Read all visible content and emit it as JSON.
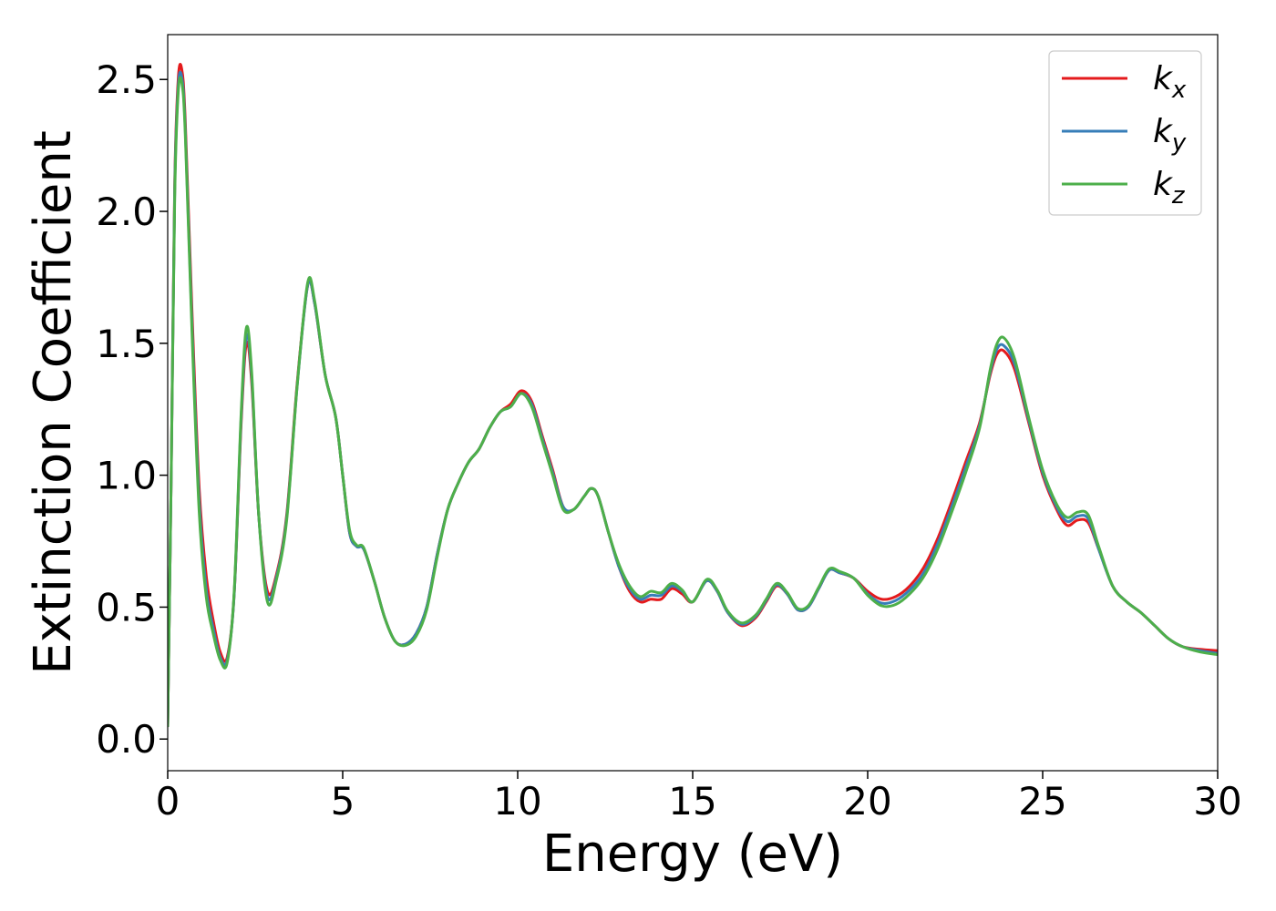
{
  "chart_data": {
    "type": "line",
    "title": "",
    "xlabel": "Energy (eV)",
    "ylabel": "Extinction Coefficient",
    "xlim": [
      0,
      30
    ],
    "ylim": [
      -0.12,
      2.67
    ],
    "xticks": [
      0,
      5,
      10,
      15,
      20,
      25,
      30
    ],
    "xtick_labels": [
      "0",
      "5",
      "10",
      "15",
      "20",
      "25",
      "30"
    ],
    "yticks": [
      0.0,
      0.5,
      1.0,
      1.5,
      2.0,
      2.5
    ],
    "ytick_labels": [
      "0.0",
      "0.5",
      "1.0",
      "1.5",
      "2.0",
      "2.5"
    ],
    "grid": false,
    "legend_position": "top-right",
    "series": [
      {
        "name": "k_x",
        "base": "k",
        "sub": "x",
        "color": "#e41a1c",
        "points": [
          [
            0,
            0.05
          ],
          [
            0.1,
            1.0
          ],
          [
            0.2,
            2.1
          ],
          [
            0.3,
            2.5
          ],
          [
            0.4,
            2.54
          ],
          [
            0.5,
            2.35
          ],
          [
            0.7,
            1.6
          ],
          [
            0.9,
            0.95
          ],
          [
            1.1,
            0.62
          ],
          [
            1.3,
            0.45
          ],
          [
            1.5,
            0.33
          ],
          [
            1.7,
            0.31
          ],
          [
            1.9,
            0.55
          ],
          [
            2.1,
            1.2
          ],
          [
            2.25,
            1.5
          ],
          [
            2.4,
            1.35
          ],
          [
            2.6,
            0.85
          ],
          [
            2.85,
            0.56
          ],
          [
            3.1,
            0.62
          ],
          [
            3.4,
            0.85
          ],
          [
            3.7,
            1.35
          ],
          [
            4.0,
            1.72
          ],
          [
            4.2,
            1.65
          ],
          [
            4.5,
            1.38
          ],
          [
            4.8,
            1.22
          ],
          [
            5.0,
            1.0
          ],
          [
            5.2,
            0.78
          ],
          [
            5.4,
            0.73
          ],
          [
            5.6,
            0.72
          ],
          [
            5.9,
            0.6
          ],
          [
            6.2,
            0.46
          ],
          [
            6.5,
            0.37
          ],
          [
            6.8,
            0.36
          ],
          [
            7.1,
            0.4
          ],
          [
            7.4,
            0.5
          ],
          [
            7.7,
            0.7
          ],
          [
            8.0,
            0.87
          ],
          [
            8.3,
            0.97
          ],
          [
            8.6,
            1.05
          ],
          [
            8.9,
            1.1
          ],
          [
            9.2,
            1.18
          ],
          [
            9.5,
            1.24
          ],
          [
            9.8,
            1.27
          ],
          [
            10.1,
            1.32
          ],
          [
            10.4,
            1.28
          ],
          [
            10.7,
            1.15
          ],
          [
            11.0,
            1.02
          ],
          [
            11.3,
            0.88
          ],
          [
            11.6,
            0.87
          ],
          [
            11.9,
            0.92
          ],
          [
            12.1,
            0.95
          ],
          [
            12.3,
            0.92
          ],
          [
            12.6,
            0.78
          ],
          [
            12.9,
            0.65
          ],
          [
            13.2,
            0.56
          ],
          [
            13.5,
            0.52
          ],
          [
            13.8,
            0.53
          ],
          [
            14.1,
            0.53
          ],
          [
            14.4,
            0.57
          ],
          [
            14.7,
            0.55
          ],
          [
            15.0,
            0.52
          ],
          [
            15.4,
            0.6
          ],
          [
            15.7,
            0.56
          ],
          [
            16.0,
            0.48
          ],
          [
            16.4,
            0.43
          ],
          [
            16.8,
            0.46
          ],
          [
            17.1,
            0.52
          ],
          [
            17.4,
            0.58
          ],
          [
            17.7,
            0.55
          ],
          [
            18.0,
            0.49
          ],
          [
            18.3,
            0.5
          ],
          [
            18.6,
            0.57
          ],
          [
            18.9,
            0.64
          ],
          [
            19.2,
            0.63
          ],
          [
            19.6,
            0.61
          ],
          [
            20.0,
            0.56
          ],
          [
            20.4,
            0.53
          ],
          [
            20.8,
            0.54
          ],
          [
            21.2,
            0.58
          ],
          [
            21.6,
            0.65
          ],
          [
            22.0,
            0.76
          ],
          [
            22.4,
            0.9
          ],
          [
            22.8,
            1.05
          ],
          [
            23.2,
            1.2
          ],
          [
            23.5,
            1.38
          ],
          [
            23.7,
            1.46
          ],
          [
            23.9,
            1.47
          ],
          [
            24.2,
            1.4
          ],
          [
            24.6,
            1.2
          ],
          [
            25.0,
            1.0
          ],
          [
            25.4,
            0.87
          ],
          [
            25.7,
            0.81
          ],
          [
            26.0,
            0.83
          ],
          [
            26.3,
            0.82
          ],
          [
            26.6,
            0.72
          ],
          [
            27.0,
            0.58
          ],
          [
            27.4,
            0.52
          ],
          [
            27.8,
            0.48
          ],
          [
            28.2,
            0.43
          ],
          [
            28.6,
            0.38
          ],
          [
            29.0,
            0.35
          ],
          [
            29.5,
            0.34
          ],
          [
            30.0,
            0.335
          ]
        ]
      },
      {
        "name": "k_y",
        "base": "k",
        "sub": "y",
        "color": "#377eb8",
        "points": [
          [
            0,
            0.05
          ],
          [
            0.1,
            1.0
          ],
          [
            0.2,
            2.08
          ],
          [
            0.3,
            2.47
          ],
          [
            0.4,
            2.51
          ],
          [
            0.5,
            2.32
          ],
          [
            0.7,
            1.55
          ],
          [
            0.9,
            0.9
          ],
          [
            1.1,
            0.57
          ],
          [
            1.3,
            0.42
          ],
          [
            1.5,
            0.31
          ],
          [
            1.7,
            0.3
          ],
          [
            1.9,
            0.55
          ],
          [
            2.1,
            1.22
          ],
          [
            2.25,
            1.53
          ],
          [
            2.4,
            1.37
          ],
          [
            2.6,
            0.85
          ],
          [
            2.85,
            0.54
          ],
          [
            3.1,
            0.61
          ],
          [
            3.4,
            0.84
          ],
          [
            3.7,
            1.34
          ],
          [
            4.0,
            1.72
          ],
          [
            4.2,
            1.65
          ],
          [
            4.5,
            1.38
          ],
          [
            4.8,
            1.22
          ],
          [
            5.0,
            1.0
          ],
          [
            5.2,
            0.78
          ],
          [
            5.4,
            0.73
          ],
          [
            5.6,
            0.72
          ],
          [
            5.9,
            0.6
          ],
          [
            6.2,
            0.46
          ],
          [
            6.5,
            0.37
          ],
          [
            6.8,
            0.36
          ],
          [
            7.1,
            0.4
          ],
          [
            7.4,
            0.5
          ],
          [
            7.7,
            0.7
          ],
          [
            8.0,
            0.87
          ],
          [
            8.3,
            0.97
          ],
          [
            8.6,
            1.05
          ],
          [
            8.9,
            1.1
          ],
          [
            9.2,
            1.18
          ],
          [
            9.5,
            1.24
          ],
          [
            9.8,
            1.26
          ],
          [
            10.1,
            1.31
          ],
          [
            10.4,
            1.27
          ],
          [
            10.7,
            1.14
          ],
          [
            11.0,
            1.01
          ],
          [
            11.3,
            0.88
          ],
          [
            11.6,
            0.87
          ],
          [
            11.9,
            0.92
          ],
          [
            12.1,
            0.95
          ],
          [
            12.3,
            0.92
          ],
          [
            12.6,
            0.78
          ],
          [
            12.9,
            0.65
          ],
          [
            13.2,
            0.57
          ],
          [
            13.5,
            0.53
          ],
          [
            13.8,
            0.545
          ],
          [
            14.1,
            0.545
          ],
          [
            14.4,
            0.58
          ],
          [
            14.7,
            0.56
          ],
          [
            15.0,
            0.52
          ],
          [
            15.4,
            0.6
          ],
          [
            15.7,
            0.56
          ],
          [
            16.0,
            0.48
          ],
          [
            16.4,
            0.435
          ],
          [
            16.8,
            0.465
          ],
          [
            17.1,
            0.525
          ],
          [
            17.4,
            0.585
          ],
          [
            17.7,
            0.55
          ],
          [
            18.0,
            0.49
          ],
          [
            18.3,
            0.5
          ],
          [
            18.6,
            0.57
          ],
          [
            18.9,
            0.64
          ],
          [
            19.2,
            0.63
          ],
          [
            19.6,
            0.61
          ],
          [
            20.0,
            0.55
          ],
          [
            20.4,
            0.515
          ],
          [
            20.8,
            0.525
          ],
          [
            21.2,
            0.565
          ],
          [
            21.6,
            0.63
          ],
          [
            22.0,
            0.74
          ],
          [
            22.4,
            0.88
          ],
          [
            22.8,
            1.03
          ],
          [
            23.2,
            1.19
          ],
          [
            23.5,
            1.39
          ],
          [
            23.7,
            1.48
          ],
          [
            23.9,
            1.49
          ],
          [
            24.2,
            1.42
          ],
          [
            24.6,
            1.21
          ],
          [
            25.0,
            1.01
          ],
          [
            25.4,
            0.88
          ],
          [
            25.7,
            0.825
          ],
          [
            26.0,
            0.845
          ],
          [
            26.3,
            0.835
          ],
          [
            26.6,
            0.72
          ],
          [
            27.0,
            0.58
          ],
          [
            27.4,
            0.52
          ],
          [
            27.8,
            0.48
          ],
          [
            28.2,
            0.43
          ],
          [
            28.6,
            0.38
          ],
          [
            29.0,
            0.35
          ],
          [
            29.5,
            0.335
          ],
          [
            30.0,
            0.325
          ]
        ]
      },
      {
        "name": "k_z",
        "base": "k",
        "sub": "z",
        "color": "#4daf4a",
        "points": [
          [
            0,
            0.05
          ],
          [
            0.1,
            1.0
          ],
          [
            0.2,
            2.05
          ],
          [
            0.3,
            2.45
          ],
          [
            0.4,
            2.49
          ],
          [
            0.5,
            2.3
          ],
          [
            0.7,
            1.52
          ],
          [
            0.9,
            0.86
          ],
          [
            1.1,
            0.54
          ],
          [
            1.3,
            0.4
          ],
          [
            1.5,
            0.3
          ],
          [
            1.7,
            0.29
          ],
          [
            1.9,
            0.56
          ],
          [
            2.1,
            1.24
          ],
          [
            2.25,
            1.56
          ],
          [
            2.4,
            1.39
          ],
          [
            2.6,
            0.85
          ],
          [
            2.85,
            0.52
          ],
          [
            3.1,
            0.6
          ],
          [
            3.4,
            0.83
          ],
          [
            3.7,
            1.34
          ],
          [
            4.0,
            1.73
          ],
          [
            4.2,
            1.66
          ],
          [
            4.5,
            1.38
          ],
          [
            4.8,
            1.22
          ],
          [
            5.0,
            1.0
          ],
          [
            5.2,
            0.79
          ],
          [
            5.4,
            0.735
          ],
          [
            5.6,
            0.725
          ],
          [
            5.9,
            0.6
          ],
          [
            6.2,
            0.46
          ],
          [
            6.5,
            0.37
          ],
          [
            6.8,
            0.355
          ],
          [
            7.1,
            0.39
          ],
          [
            7.4,
            0.49
          ],
          [
            7.7,
            0.69
          ],
          [
            8.0,
            0.87
          ],
          [
            8.3,
            0.97
          ],
          [
            8.6,
            1.05
          ],
          [
            8.9,
            1.1
          ],
          [
            9.2,
            1.18
          ],
          [
            9.5,
            1.24
          ],
          [
            9.8,
            1.26
          ],
          [
            10.1,
            1.31
          ],
          [
            10.4,
            1.26
          ],
          [
            10.7,
            1.13
          ],
          [
            11.0,
            1.0
          ],
          [
            11.3,
            0.87
          ],
          [
            11.6,
            0.87
          ],
          [
            11.9,
            0.92
          ],
          [
            12.1,
            0.95
          ],
          [
            12.3,
            0.92
          ],
          [
            12.6,
            0.78
          ],
          [
            12.9,
            0.66
          ],
          [
            13.2,
            0.58
          ],
          [
            13.5,
            0.54
          ],
          [
            13.8,
            0.56
          ],
          [
            14.1,
            0.555
          ],
          [
            14.4,
            0.59
          ],
          [
            14.7,
            0.565
          ],
          [
            15.0,
            0.52
          ],
          [
            15.4,
            0.605
          ],
          [
            15.7,
            0.565
          ],
          [
            16.0,
            0.485
          ],
          [
            16.4,
            0.44
          ],
          [
            16.8,
            0.47
          ],
          [
            17.1,
            0.53
          ],
          [
            17.4,
            0.59
          ],
          [
            17.7,
            0.555
          ],
          [
            18.0,
            0.495
          ],
          [
            18.3,
            0.505
          ],
          [
            18.6,
            0.575
          ],
          [
            18.9,
            0.645
          ],
          [
            19.2,
            0.635
          ],
          [
            19.6,
            0.61
          ],
          [
            20.0,
            0.545
          ],
          [
            20.4,
            0.505
          ],
          [
            20.8,
            0.51
          ],
          [
            21.2,
            0.55
          ],
          [
            21.6,
            0.615
          ],
          [
            22.0,
            0.72
          ],
          [
            22.4,
            0.86
          ],
          [
            22.8,
            1.01
          ],
          [
            23.2,
            1.18
          ],
          [
            23.5,
            1.4
          ],
          [
            23.7,
            1.5
          ],
          [
            23.9,
            1.52
          ],
          [
            24.2,
            1.44
          ],
          [
            24.6,
            1.22
          ],
          [
            25.0,
            1.02
          ],
          [
            25.4,
            0.89
          ],
          [
            25.7,
            0.84
          ],
          [
            26.0,
            0.86
          ],
          [
            26.3,
            0.85
          ],
          [
            26.6,
            0.73
          ],
          [
            27.0,
            0.58
          ],
          [
            27.4,
            0.52
          ],
          [
            27.8,
            0.48
          ],
          [
            28.2,
            0.43
          ],
          [
            28.6,
            0.38
          ],
          [
            29.0,
            0.35
          ],
          [
            29.5,
            0.33
          ],
          [
            30.0,
            0.32
          ]
        ]
      }
    ]
  }
}
